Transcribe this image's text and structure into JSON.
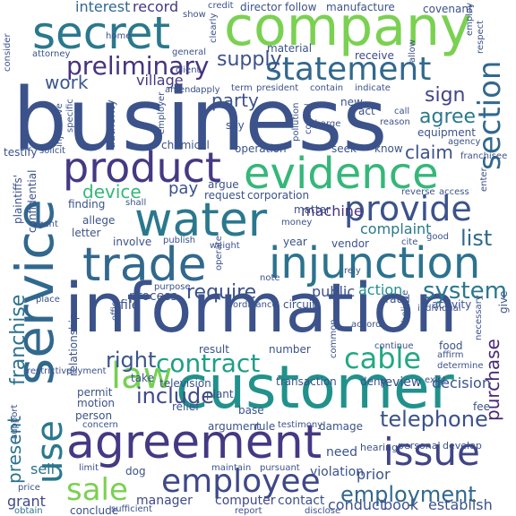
{
  "words": {
    "business": "business",
    "information": "information",
    "customer": "customer",
    "agreement": "agreement",
    "company": "company",
    "secret": "secret",
    "service": "service",
    "water": "water",
    "trade": "trade",
    "injunction": "injunction",
    "evidence": "evidence",
    "product": "product",
    "statement": "statement",
    "section": "section",
    "provide": "provide",
    "issue": "issue",
    "employee": "employee",
    "cable": "cable",
    "contract": "contract",
    "law": "law",
    "use": "use",
    "sale": "sale",
    "employment": "employment",
    "franchise": "franchise",
    "preliminary": "preliminary",
    "supply": "supply",
    "system": "system",
    "right": "right",
    "include": "include",
    "telephone": "telephone",
    "purchase": "purchase",
    "require": "require",
    "device": "device",
    "list": "list",
    "work": "work",
    "sign": "sign",
    "agree": "agree",
    "party": "party",
    "village": "village",
    "claim": "claim",
    "complaint": "complaint",
    "pay": "pay",
    "machine": "machine",
    "interest": "interest",
    "record": "record",
    "material": "material",
    "receive": "receive",
    "process": "process",
    "public": "public",
    "action": "action",
    "present": "present",
    "sell": "sell",
    "grant": "grant",
    "obtain": "obtain",
    "manager": "manager",
    "computer": "computer",
    "contact": "contact",
    "conduct": "conduct",
    "book": "book",
    "establish": "establish",
    "prior": "prior",
    "need": "need",
    "violation": "violation",
    "damage": "damage",
    "hearing": "hearing",
    "personal": "personal",
    "develop": "develop",
    "decision": "decision",
    "review": "review",
    "deny": "deny",
    "transaction": "transaction",
    "fee": "fee",
    "give": "give",
    "activity": "activity",
    "relief": "relief",
    "plant": "plant",
    "television": "television",
    "take": "take",
    "result": "result",
    "number": "number",
    "testify": "testify",
    "solicit": "solicit",
    "manufacture": "manufacture",
    "covenant": "covenant",
    "follow": "follow",
    "director": "director",
    "credit": "credit",
    "show": "show",
    "employ": "employ",
    "consider": "consider",
    "home": "home",
    "clearly": "clearly",
    "allow": "allow",
    "respect": "respect",
    "attorney": "attorney",
    "general": "general",
    "client": "client",
    "term": "term",
    "president": "president",
    "contain": "contain",
    "indicate": "indicate",
    "amend": "amend",
    "apply": "apply",
    "new": "new",
    "act": "act",
    "call": "call",
    "reason": "reason",
    "equipment": "equipment",
    "agency": "agency",
    "know": "know",
    "say": "say",
    "charge": "charge",
    "operation": "operation",
    "seek": "seek",
    "chemical": "chemical",
    "franchisee": "franchisee",
    "enter": "enter",
    "argue": "argue",
    "request": "request",
    "corporation": "corporation",
    "reverse": "reverse",
    "access": "access",
    "finding": "finding",
    "shall": "shall",
    "matter": "matter",
    "allege": "allege",
    "letter": "letter",
    "involve": "involve",
    "publish": "publish",
    "year": "year",
    "vendor": "vendor",
    "cite": "cite",
    "agent": "agent",
    "note": "note",
    "operate": "operate",
    "rely": "rely",
    "fraud": "fraud",
    "circuit": "circuit",
    "ordinance": "ordinance",
    "purpose": "purpose",
    "file": "file",
    "place": "place",
    "office": "office",
    "argument": "argument",
    "rule": "rule",
    "testimony": "testimony",
    "base": "base",
    "permit": "permit",
    "motion": "motion",
    "person": "person",
    "concern": "concern",
    "payment": "payment",
    "support": "support",
    "limit": "limit",
    "dog": "dog",
    "maintain": "maintain",
    "pursuant": "pursuant",
    "conclude": "conclude",
    "sufficient": "sufficient",
    "disclose": "disclose",
    "price": "price",
    "plaintiffs": "plaintiffs'",
    "confidential": "confidential",
    "injunctive": "injunctive",
    "specific": "specific",
    "authority": "authority",
    "employer": "employer",
    "pollution": "pollution",
    "control": "control",
    "money": "money",
    "weight": "weight",
    "accord": "accord",
    "continue": "continue",
    "common": "common",
    "food": "food",
    "affirm": "affirm",
    "necessary": "necessary",
    "determine": "determine",
    "believe": "believe",
    "relationship": "relationship",
    "exist": "exist",
    "individual": "individual",
    "report": "report",
    "good": "good",
    "restrictive": "restrictive"
  }
}
